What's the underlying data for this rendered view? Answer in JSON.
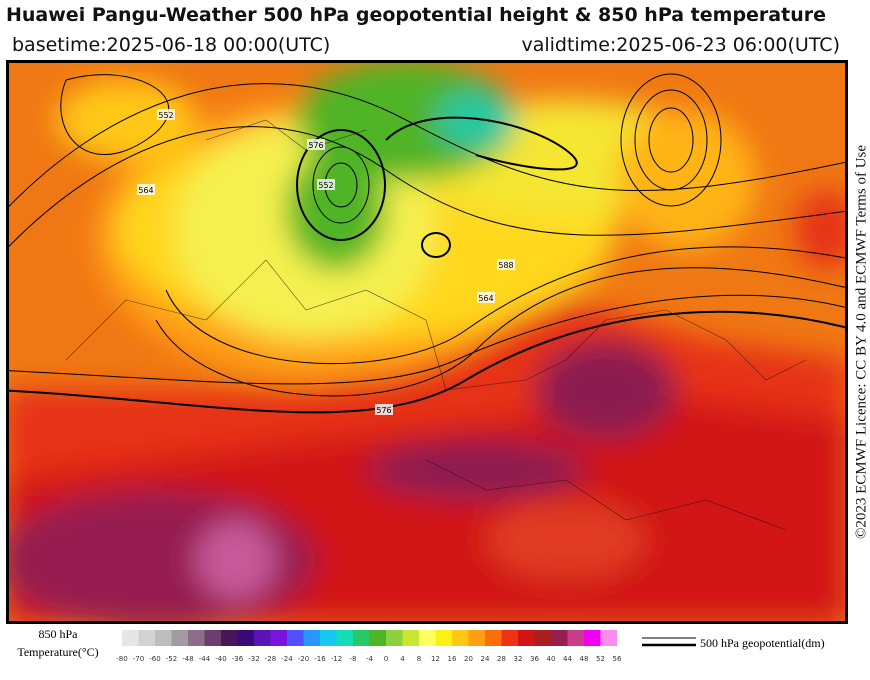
{
  "header": {
    "title": "Huawei Pangu-Weather 500 hPa geopotential height & 850 hPa temperature",
    "basetime": "basetime:2025-06-18 00:00(UTC)",
    "validtime": "validtime:2025-06-23 06:00(UTC)"
  },
  "license": "©2023 ECMWF Licence: CC BY 4.0 and ECMWF Terms of Use",
  "colorbar": {
    "title_line1": "850 hPa",
    "title_line2": "Temperature(°C)",
    "ticks": [
      -80,
      -70,
      -60,
      -52,
      -48,
      -44,
      -40,
      -36,
      -32,
      -28,
      -24,
      -20,
      -16,
      -12,
      -8,
      -4,
      0,
      4,
      8,
      12,
      16,
      20,
      24,
      28,
      32,
      36,
      40,
      44,
      48,
      52,
      56
    ],
    "colors": [
      "#e6e6e6",
      "#d2d2d2",
      "#bdbdbd",
      "#a39aa3",
      "#8c6e8c",
      "#6e3c6e",
      "#4b145a",
      "#3c0a78",
      "#5a14b4",
      "#7814dc",
      "#5050ff",
      "#2896ff",
      "#14c8f0",
      "#14dcb4",
      "#28c864",
      "#50b428",
      "#8cd23c",
      "#c8e632",
      "#ffff64",
      "#fff014",
      "#ffc814",
      "#ffa014",
      "#ff6e0a",
      "#f03214",
      "#d21414",
      "#aa1e1e",
      "#961e50",
      "#c83c8c",
      "#f000f0",
      "#fa8cf0",
      "#fab4f0"
    ]
  },
  "legend": {
    "label": "500 hPa geopotential(dm)"
  },
  "contour_labels": [
    "552",
    "564",
    "576",
    "552",
    "564",
    "576",
    "588"
  ]
}
